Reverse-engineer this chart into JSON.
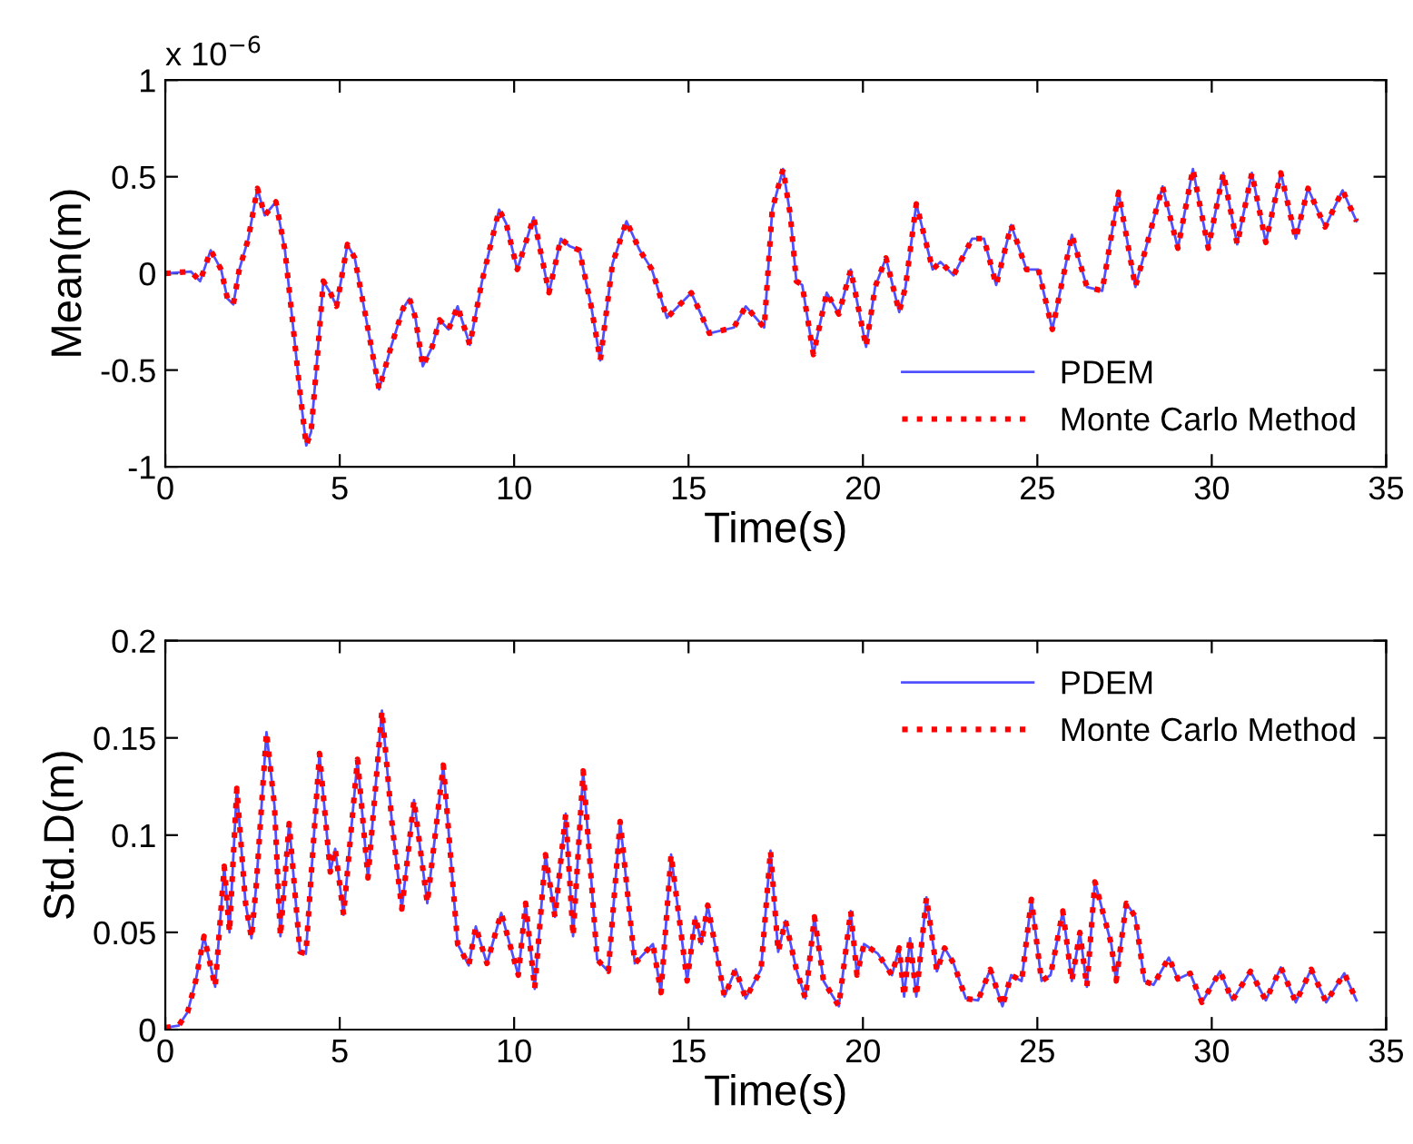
{
  "chart_data": [
    {
      "type": "line",
      "ylabel": "Mean(m)",
      "xlabel": "Time(s)",
      "annotations": [
        "x 10$^{−6}$"
      ],
      "x": [
        0,
        0.73,
        1.0,
        1.3,
        1.6,
        1.78,
        1.95,
        2.12,
        2.38,
        2.64,
        2.85,
        3.17,
        3.43,
        3.69,
        3.87,
        4.04,
        4.18,
        4.35,
        4.53,
        4.73,
        4.91,
        5.22,
        5.43,
        5.69,
        6.13,
        6.47,
        6.82,
        7.0,
        7.17,
        7.38,
        7.65,
        7.86,
        8.12,
        8.38,
        8.73,
        9.08,
        9.57,
        9.77,
        10.09,
        10.56,
        11.0,
        11.34,
        11.6,
        11.87,
        12.21,
        12.47,
        12.82,
        13.22,
        13.6,
        13.95,
        14.38,
        15.08,
        15.6,
        16.3,
        16.64,
        17.17,
        17.4,
        17.71,
        17.92,
        18.09,
        18.26,
        18.58,
        18.96,
        19.31,
        19.65,
        20.09,
        20.35,
        20.66,
        21.04,
        21.22,
        21.53,
        22.0,
        22.22,
        22.6,
        23.13,
        23.47,
        23.82,
        24.25,
        24.69,
        25.03,
        25.43,
        25.99,
        26.42,
        26.86,
        27.33,
        27.81,
        28.59,
        29.03,
        29.46,
        29.9,
        30.33,
        30.73,
        31.15,
        31.55,
        31.98,
        32.41,
        32.76,
        33.25,
        33.75,
        34.15
      ],
      "series": [
        {
          "name": "PDEM",
          "color": "#5050ff",
          "line_style": "solid",
          "values": [
            0,
            0.01,
            -0.04,
            0.12,
            0.02,
            -0.13,
            -0.16,
            0.02,
            0.18,
            0.44,
            0.3,
            0.37,
            0.12,
            -0.32,
            -0.63,
            -0.89,
            -0.82,
            -0.45,
            -0.04,
            -0.1,
            -0.17,
            0.15,
            0.08,
            -0.17,
            -0.6,
            -0.38,
            -0.18,
            -0.13,
            -0.23,
            -0.48,
            -0.38,
            -0.24,
            -0.29,
            -0.17,
            -0.37,
            -0.04,
            0.33,
            0.26,
            0.02,
            0.29,
            -0.1,
            0.18,
            0.14,
            0.12,
            -0.17,
            -0.45,
            0.05,
            0.27,
            0.12,
            0.02,
            -0.23,
            -0.1,
            -0.31,
            -0.28,
            -0.17,
            -0.28,
            0.33,
            0.54,
            0.3,
            -0.04,
            -0.06,
            -0.42,
            -0.1,
            -0.21,
            0.02,
            -0.38,
            -0.07,
            0.08,
            -0.2,
            -0.07,
            0.36,
            0.02,
            0.06,
            -0.01,
            0.18,
            0.18,
            -0.06,
            0.25,
            0.02,
            0.02,
            -0.29,
            0.2,
            -0.07,
            -0.09,
            0.42,
            -0.07,
            0.45,
            0.13,
            0.54,
            0.13,
            0.52,
            0.15,
            0.52,
            0.16,
            0.52,
            0.18,
            0.44,
            0.24,
            0.43,
            0.27
          ]
        },
        {
          "name": "Monte Carlo Method",
          "color": "#ff0000",
          "line_style": "dotted",
          "values": [
            0,
            0.01,
            -0.04,
            0.12,
            0.02,
            -0.13,
            -0.16,
            0.02,
            0.18,
            0.44,
            0.3,
            0.37,
            0.12,
            -0.32,
            -0.63,
            -0.89,
            -0.82,
            -0.45,
            -0.04,
            -0.1,
            -0.17,
            0.15,
            0.08,
            -0.17,
            -0.6,
            -0.38,
            -0.18,
            -0.13,
            -0.23,
            -0.48,
            -0.38,
            -0.24,
            -0.29,
            -0.17,
            -0.37,
            -0.04,
            0.33,
            0.26,
            0.02,
            0.29,
            -0.1,
            0.18,
            0.14,
            0.12,
            -0.17,
            -0.45,
            0.05,
            0.27,
            0.12,
            0.02,
            -0.23,
            -0.1,
            -0.31,
            -0.28,
            -0.17,
            -0.28,
            0.33,
            0.54,
            0.3,
            -0.04,
            -0.06,
            -0.42,
            -0.1,
            -0.21,
            0.02,
            -0.38,
            -0.07,
            0.08,
            -0.2,
            -0.07,
            0.36,
            0.02,
            0.06,
            -0.01,
            0.18,
            0.18,
            -0.06,
            0.25,
            0.02,
            0.02,
            -0.29,
            0.2,
            -0.07,
            -0.09,
            0.42,
            -0.07,
            0.45,
            0.13,
            0.54,
            0.13,
            0.52,
            0.15,
            0.52,
            0.16,
            0.52,
            0.18,
            0.44,
            0.24,
            0.43,
            0.27
          ]
        }
      ],
      "xlim": [
        0,
        35
      ],
      "xticks": [
        0,
        5,
        10,
        15,
        20,
        25,
        30,
        35
      ],
      "ylim": [
        -1,
        1
      ],
      "yticks": [
        -1,
        -0.5,
        0,
        0.5,
        1
      ],
      "legend": "bottom right",
      "grid": false
    },
    {
      "type": "line",
      "ylabel": "Std.D(m)",
      "xlabel": "Time(s)",
      "x": [
        0,
        0.38,
        0.64,
        0.87,
        1.11,
        1.43,
        1.69,
        1.84,
        2.05,
        2.3,
        2.47,
        2.61,
        2.9,
        3.13,
        3.3,
        3.55,
        3.86,
        4.03,
        4.42,
        4.73,
        4.87,
        5.11,
        5.51,
        5.81,
        6.21,
        6.5,
        6.78,
        7.13,
        7.51,
        7.97,
        8.38,
        8.7,
        8.9,
        9.22,
        9.63,
        10.12,
        10.33,
        10.59,
        10.9,
        11.17,
        11.48,
        11.69,
        11.98,
        12.38,
        12.7,
        13.04,
        13.46,
        13.98,
        14.21,
        14.5,
        14.96,
        15.2,
        15.37,
        15.55,
        16.03,
        16.35,
        16.64,
        17.08,
        17.35,
        17.57,
        17.78,
        18.09,
        18.35,
        18.61,
        18.87,
        19.31,
        19.65,
        19.83,
        20.03,
        20.43,
        20.83,
        21.04,
        21.18,
        21.35,
        21.53,
        21.82,
        22.12,
        22.34,
        22.6,
        22.95,
        23.3,
        23.65,
        24.0,
        24.25,
        24.55,
        24.83,
        25.12,
        25.38,
        25.73,
        25.99,
        26.22,
        26.42,
        26.65,
        27.12,
        27.26,
        27.55,
        27.81,
        28.07,
        28.33,
        28.77,
        29.03,
        29.38,
        29.72,
        30.24,
        30.59,
        31.11,
        31.55,
        31.98,
        32.41,
        32.85,
        33.28,
        33.8,
        34.15
      ],
      "series": [
        {
          "name": "PDEM",
          "color": "#5050ff",
          "line_style": "solid",
          "values": [
            0.001,
            0.002,
            0.009,
            0.025,
            0.048,
            0.022,
            0.084,
            0.05,
            0.124,
            0.065,
            0.047,
            0.075,
            0.153,
            0.115,
            0.048,
            0.106,
            0.04,
            0.039,
            0.142,
            0.081,
            0.093,
            0.059,
            0.139,
            0.078,
            0.164,
            0.106,
            0.062,
            0.118,
            0.065,
            0.136,
            0.044,
            0.033,
            0.053,
            0.034,
            0.06,
            0.028,
            0.065,
            0.021,
            0.09,
            0.058,
            0.111,
            0.048,
            0.133,
            0.036,
            0.03,
            0.107,
            0.034,
            0.044,
            0.019,
            0.09,
            0.025,
            0.058,
            0.044,
            0.064,
            0.017,
            0.031,
            0.016,
            0.031,
            0.092,
            0.04,
            0.056,
            0.031,
            0.016,
            0.058,
            0.025,
            0.012,
            0.061,
            0.028,
            0.044,
            0.039,
            0.028,
            0.042,
            0.017,
            0.047,
            0.017,
            0.068,
            0.03,
            0.042,
            0.034,
            0.016,
            0.015,
            0.031,
            0.012,
            0.028,
            0.025,
            0.067,
            0.025,
            0.028,
            0.061,
            0.025,
            0.05,
            0.022,
            0.076,
            0.044,
            0.025,
            0.065,
            0.058,
            0.025,
            0.023,
            0.037,
            0.026,
            0.029,
            0.014,
            0.03,
            0.015,
            0.03,
            0.015,
            0.032,
            0.014,
            0.031,
            0.014,
            0.029,
            0.015
          ]
        },
        {
          "name": "Monte Carlo Method",
          "color": "#ff0000",
          "line_style": "dotted",
          "values": [
            0.001,
            0.002,
            0.009,
            0.025,
            0.048,
            0.022,
            0.084,
            0.05,
            0.124,
            0.065,
            0.047,
            0.075,
            0.153,
            0.115,
            0.048,
            0.106,
            0.04,
            0.039,
            0.142,
            0.081,
            0.093,
            0.059,
            0.139,
            0.078,
            0.164,
            0.106,
            0.062,
            0.118,
            0.065,
            0.136,
            0.044,
            0.033,
            0.053,
            0.034,
            0.06,
            0.028,
            0.065,
            0.021,
            0.09,
            0.058,
            0.111,
            0.048,
            0.133,
            0.036,
            0.03,
            0.107,
            0.034,
            0.044,
            0.019,
            0.09,
            0.025,
            0.058,
            0.044,
            0.064,
            0.017,
            0.031,
            0.016,
            0.031,
            0.092,
            0.04,
            0.056,
            0.031,
            0.016,
            0.058,
            0.025,
            0.012,
            0.061,
            0.028,
            0.044,
            0.039,
            0.028,
            0.042,
            0.017,
            0.047,
            0.017,
            0.068,
            0.03,
            0.042,
            0.034,
            0.016,
            0.015,
            0.031,
            0.012,
            0.028,
            0.025,
            0.067,
            0.025,
            0.028,
            0.061,
            0.025,
            0.05,
            0.022,
            0.076,
            0.044,
            0.025,
            0.065,
            0.058,
            0.025,
            0.023,
            0.037,
            0.026,
            0.029,
            0.014,
            0.03,
            0.015,
            0.03,
            0.015,
            0.032,
            0.014,
            0.031,
            0.014,
            0.029,
            0.015
          ]
        }
      ],
      "xlim": [
        0,
        35
      ],
      "xticks": [
        0,
        5,
        10,
        15,
        20,
        25,
        30,
        35
      ],
      "ylim": [
        0,
        0.2
      ],
      "yticks": [
        0,
        0.05,
        0.1,
        0.15,
        0.2
      ],
      "legend": "top right",
      "grid": false
    }
  ]
}
